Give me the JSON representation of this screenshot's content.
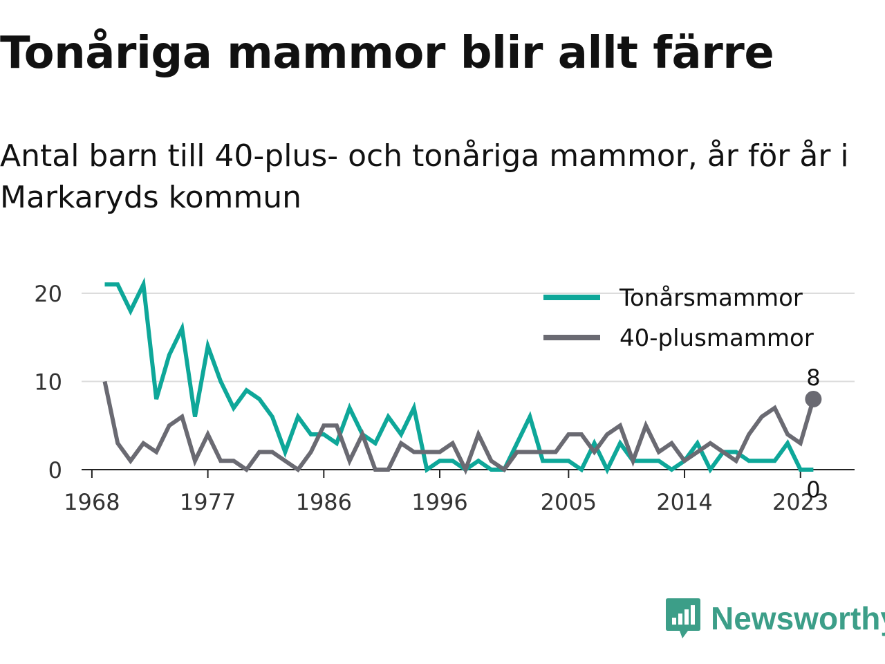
{
  "header": {
    "title": "Tonåriga mammor blir allt färre",
    "subtitle": "Antal barn till 40-plus- och tonåriga mammor, år för år i Markaryds kommun"
  },
  "brand": {
    "name": "Newsworthy",
    "logo_icon": "bar-chart-speech-bubble-icon",
    "color": "#3c9e88"
  },
  "chart_data": {
    "type": "line",
    "title": "",
    "xlabel": "",
    "ylabel": "",
    "x": [
      1969,
      1970,
      1971,
      1972,
      1973,
      1974,
      1975,
      1976,
      1977,
      1978,
      1979,
      1980,
      1981,
      1982,
      1983,
      1984,
      1985,
      1986,
      1987,
      1988,
      1989,
      1990,
      1991,
      1992,
      1993,
      1994,
      1995,
      1996,
      1997,
      1998,
      1999,
      2000,
      2001,
      2002,
      2003,
      2004,
      2005,
      2006,
      2007,
      2008,
      2009,
      2010,
      2011,
      2012,
      2013,
      2014,
      2015,
      2016,
      2017,
      2018,
      2019,
      2020,
      2021,
      2022,
      2023,
      2024
    ],
    "x_ticks": [
      "1968",
      "1977",
      "1986",
      "1996",
      "2005",
      "2014",
      "2023"
    ],
    "x_tick_values": [
      1968,
      1977,
      1986,
      1995,
      2005,
      2014,
      2023
    ],
    "xlim": [
      1967.2,
      2027.2
    ],
    "y_ticks": [
      "0",
      "10",
      "20"
    ],
    "y_tick_values": [
      0,
      10,
      20
    ],
    "ylim": [
      0,
      21
    ],
    "grid": "horizontal",
    "legend_position": "top-right",
    "series": [
      {
        "name": "Tonårsmammor",
        "color": "#0ea799",
        "values": [
          21,
          21,
          18,
          21,
          8,
          13,
          16,
          6,
          14,
          10,
          7,
          9,
          8,
          6,
          2,
          6,
          4,
          4,
          3,
          7,
          4,
          3,
          6,
          4,
          7,
          0,
          1,
          1,
          0,
          1,
          0,
          0,
          3,
          6,
          1,
          1,
          1,
          0,
          3,
          0,
          3,
          1,
          1,
          1,
          0,
          1,
          3,
          0,
          2,
          2,
          1,
          1,
          1,
          3,
          0,
          0
        ],
        "end_label": "0"
      },
      {
        "name": "40-plusmammor",
        "color": "#6a6a72",
        "values": [
          10,
          3,
          1,
          3,
          2,
          5,
          6,
          1,
          4,
          1,
          1,
          0,
          2,
          2,
          1,
          0,
          2,
          5,
          5,
          1,
          4,
          0,
          0,
          3,
          2,
          2,
          2,
          3,
          0,
          4,
          1,
          0,
          2,
          2,
          2,
          2,
          4,
          4,
          2,
          4,
          5,
          1,
          5,
          2,
          3,
          1,
          2,
          3,
          2,
          1,
          4,
          6,
          7,
          4,
          3,
          8
        ],
        "end_label": "8"
      }
    ]
  }
}
